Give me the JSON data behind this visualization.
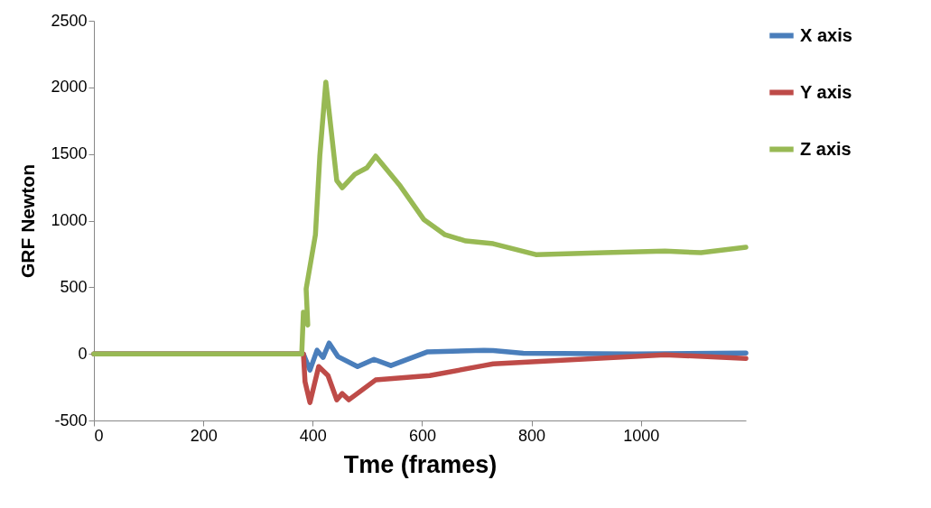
{
  "chart_data": {
    "type": "line",
    "xlabel": "Tme (frames)",
    "ylabel": "GRF Newton",
    "xlim": [
      0,
      1192
    ],
    "xticks": [
      0,
      200,
      400,
      600,
      800,
      1000
    ],
    "ylim": [
      -500,
      2500
    ],
    "yticks": [
      -500,
      0,
      500,
      1000,
      1500,
      2000,
      2500
    ],
    "grid": false,
    "legend": "right",
    "marker": "none",
    "line_style": "solid",
    "series": [
      {
        "name": "X axis",
        "color": "#4a7ebb",
        "x": [
          0,
          380,
          383,
          395,
          408,
          419,
          430,
          446,
          482,
          512,
          543,
          609,
          713,
          730,
          785,
          990,
          1192
        ],
        "values": [
          0,
          0,
          0,
          -122,
          27,
          -27,
          81,
          -20,
          -95,
          -41,
          -88,
          14,
          27,
          25,
          5,
          0,
          7
        ]
      },
      {
        "name": "Y axis",
        "color": "#be4b48",
        "x": [
          0,
          380,
          383,
          386,
          395,
          403,
          411,
          428,
          444,
          454,
          466,
          515,
          614,
          713,
          730,
          824,
          1044,
          1192
        ],
        "values": [
          0,
          0,
          0,
          -210,
          -366,
          -230,
          -95,
          -163,
          -345,
          -298,
          -345,
          -196,
          -163,
          -88,
          -75,
          -54,
          -7,
          -34
        ]
      },
      {
        "name": "Z axis",
        "color": "#98b954",
        "x": [
          0,
          380,
          383,
          391,
          388,
          405,
          413,
          424,
          433,
          444,
          454,
          477,
          499,
          515,
          560,
          603,
          642,
          680,
          730,
          808,
          933,
          1044,
          1110,
          1192
        ],
        "values": [
          0,
          0,
          312,
          217,
          488,
          894,
          1484,
          2040,
          1707,
          1301,
          1247,
          1348,
          1396,
          1484,
          1260,
          1009,
          894,
          847,
          827,
          745,
          759,
          772,
          759,
          800
        ]
      }
    ]
  }
}
